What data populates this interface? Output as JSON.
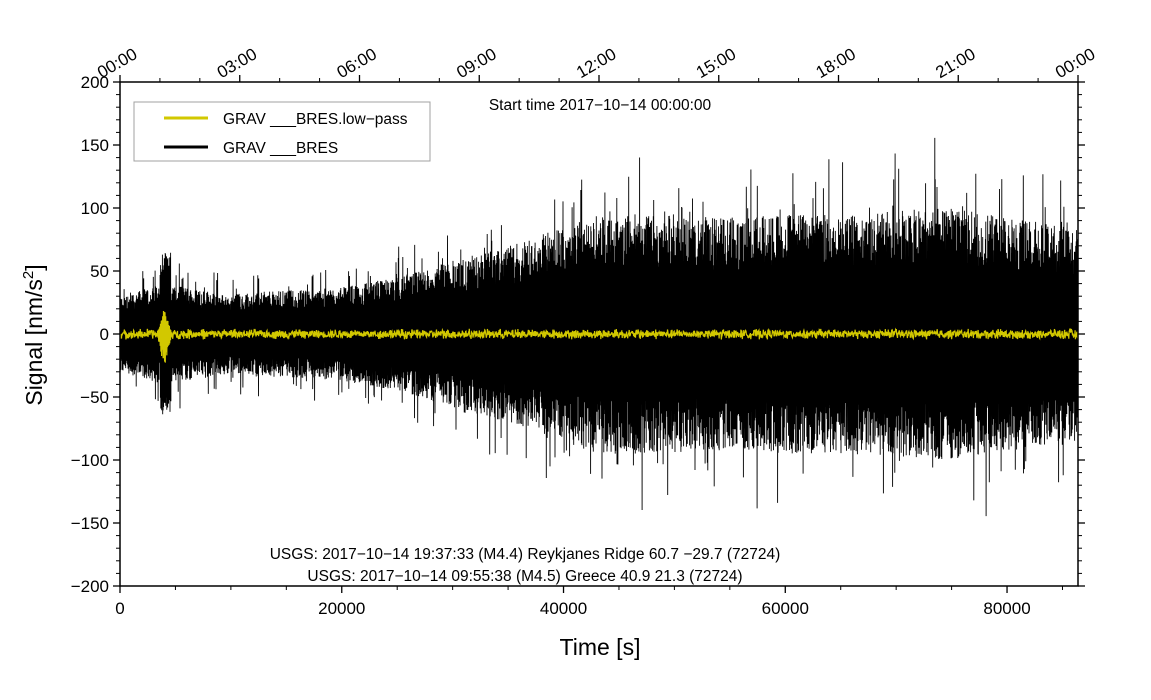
{
  "chart_data": {
    "type": "line",
    "title": "",
    "xlabel": "Time [s]",
    "ylabel_main": "Signal [nm/s",
    "ylabel_sup": "2",
    "ylabel_end": "]",
    "xlim": [
      0,
      86400
    ],
    "ylim": [
      -200,
      200
    ],
    "x_ticks": [
      0,
      20000,
      40000,
      60000,
      80000
    ],
    "x_tick_labels": [
      "0",
      "20000",
      "40000",
      "60000",
      "80000"
    ],
    "y_ticks": [
      -200,
      -150,
      -100,
      -50,
      0,
      50,
      100,
      150,
      200
    ],
    "y_tick_labels": [
      "−200",
      "−150",
      "−100",
      "−50",
      "0",
      "50",
      "100",
      "150",
      "200"
    ],
    "top_axis_ticks": [
      0,
      10800,
      21600,
      32400,
      43200,
      54000,
      64800,
      75600,
      86400
    ],
    "top_axis_labels": [
      "00:00",
      "03:00",
      "06:00",
      "09:00",
      "12:00",
      "15:00",
      "18:00",
      "21:00",
      "00:00"
    ],
    "start_time_label": "Start time 2017−10−14 00:00:00",
    "annotations": [
      "USGS: 2017−10−14 19:37:33 (M4.4) Reykjanes Ridge 60.7 −29.7 (72724)",
      "USGS: 2017−10−14 09:55:38 (M4.5) Greece 40.9 21.3 (72724)"
    ],
    "legend": [
      {
        "label": "GRAV ___BRES.low−pass",
        "color": "#d2c800"
      },
      {
        "label": "GRAV ___BRES",
        "color": "#000000"
      }
    ],
    "legend_position": "top-left",
    "series": [
      {
        "name": "GRAV ___BRES",
        "color": "#000000",
        "envelope_x": [
          0,
          4000,
          10000,
          20000,
          25000,
          30000,
          35000,
          40000,
          43000,
          48000,
          55000,
          60000,
          65000,
          70000,
          75000,
          80000,
          86400
        ],
        "envelope_amplitude": [
          30,
          40,
          32,
          37,
          45,
          58,
          70,
          85,
          95,
          95,
          92,
          95,
          95,
          98,
          100,
          92,
          85
        ]
      },
      {
        "name": "GRAV ___BRES.low−pass",
        "color": "#d2c800",
        "amplitude": 3,
        "event_x": 4000,
        "event_peak": 22,
        "event_trough": -27
      }
    ]
  }
}
